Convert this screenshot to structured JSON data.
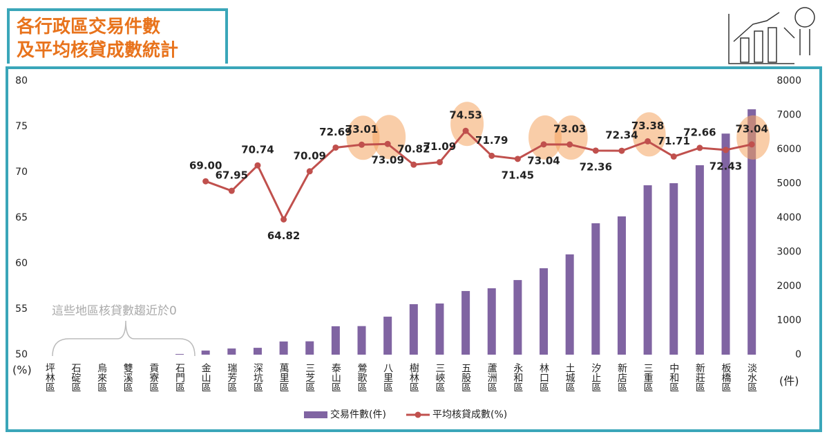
{
  "chart_data": {
    "type": "combo",
    "title": [
      "各行政區交易件數",
      "及平均核貸成數統計"
    ],
    "categories": [
      "坪林區",
      "石碇區",
      "烏來區",
      "雙溪區",
      "貢寮區",
      "石門區",
      "金山區",
      "瑞芳區",
      "深坑區",
      "萬里區",
      "三芝區",
      "泰山區",
      "鶯歌區",
      "八里區",
      "樹林區",
      "三峽區",
      "五股區",
      "蘆洲區",
      "永和區",
      "林口區",
      "土城區",
      "汐止區",
      "新店區",
      "三重區",
      "中和區",
      "新莊區",
      "板橋區",
      "淡水區"
    ],
    "series": [
      {
        "name": "交易件數(件)",
        "color": "#8064a2",
        "axis": "y2",
        "values": [
          0,
          0,
          0,
          0,
          0,
          20,
          120,
          180,
          200,
          385,
          390,
          830,
          835,
          1110,
          1475,
          1495,
          1860,
          1940,
          2180,
          2525,
          2930,
          3840,
          4040,
          4950,
          5010,
          5535,
          6460,
          7170
        ]
      },
      {
        "name": "平均核貸成數(%)",
        "color": "#c0504d",
        "values": [
          null,
          null,
          null,
          null,
          null,
          null,
          69.0,
          67.95,
          70.74,
          64.82,
          70.09,
          72.69,
          73.01,
          73.09,
          70.82,
          71.09,
          74.53,
          71.79,
          71.45,
          73.04,
          73.03,
          72.36,
          72.34,
          73.38,
          71.71,
          72.66,
          72.43,
          73.04
        ],
        "value_labels": [
          null,
          null,
          null,
          null,
          null,
          null,
          "69.00",
          "67.95",
          "70.74",
          "64.82",
          "70.09",
          "72.69",
          "73.01",
          "73.09",
          "70.82",
          "71.09",
          "74.53",
          "71.79",
          "71.45",
          "73.04",
          "73.03",
          "72.36",
          "72.34",
          "73.38",
          "71.71",
          "72.66",
          "72.43",
          "73.04"
        ]
      }
    ],
    "ylim": [
      50,
      80
    ],
    "yticks": [
      50,
      55,
      60,
      65,
      70,
      75,
      80
    ],
    "y_label": "(%)",
    "y2lim": [
      0,
      8000
    ],
    "y2ticks": [
      0,
      1000,
      2000,
      3000,
      4000,
      5000,
      6000,
      7000,
      8000
    ],
    "y2_label": "(件)",
    "annotation": "這些地區核貸數趨近於0",
    "legend": "bottom"
  }
}
